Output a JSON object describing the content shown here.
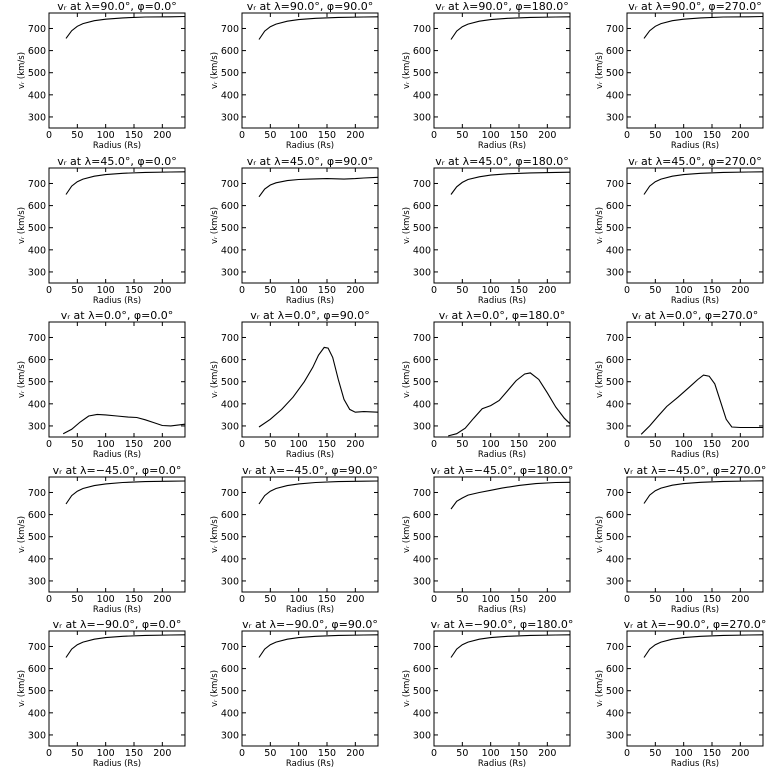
{
  "figure": {
    "panels_per_row": 4,
    "xlabel": "Radius (Rs)",
    "ylabel": "vᵣ (km/s)"
  },
  "chart_data": [
    {
      "type": "line",
      "title": "vᵣ at λ=90.0°, φ=0.0°",
      "xlabel": "Radius (Rs)",
      "ylabel": "vᵣ (km/s)",
      "xlim": [
        0,
        240
      ],
      "ylim": [
        250,
        770
      ],
      "xticks": [
        0,
        50,
        100,
        150,
        200
      ],
      "yticks": [
        300,
        400,
        500,
        600,
        700
      ],
      "series": [
        {
          "x": [
            30,
            40,
            50,
            60,
            80,
            100,
            130,
            170,
            215,
            240
          ],
          "y": [
            655,
            690,
            710,
            722,
            735,
            742,
            748,
            752,
            753,
            754
          ]
        }
      ]
    },
    {
      "type": "line",
      "title": "vᵣ at λ=90.0°, φ=90.0°",
      "xlabel": "Radius (Rs)",
      "ylabel": "vᵣ (km/s)",
      "xlim": [
        0,
        240
      ],
      "ylim": [
        250,
        770
      ],
      "xticks": [
        0,
        50,
        100,
        150,
        200
      ],
      "yticks": [
        300,
        400,
        500,
        600,
        700
      ],
      "series": [
        {
          "x": [
            30,
            40,
            50,
            60,
            80,
            100,
            130,
            170,
            215,
            240
          ],
          "y": [
            650,
            688,
            708,
            720,
            733,
            740,
            746,
            750,
            752,
            753
          ]
        }
      ]
    },
    {
      "type": "line",
      "title": "vᵣ at λ=90.0°, φ=180.0°",
      "xlabel": "Radius (Rs)",
      "ylabel": "vᵣ (km/s)",
      "xlim": [
        0,
        240
      ],
      "ylim": [
        250,
        770
      ],
      "xticks": [
        0,
        50,
        100,
        150,
        200
      ],
      "yticks": [
        300,
        400,
        500,
        600,
        700
      ],
      "series": [
        {
          "x": [
            30,
            40,
            50,
            60,
            80,
            100,
            130,
            170,
            215,
            240
          ],
          "y": [
            650,
            688,
            708,
            720,
            733,
            740,
            746,
            750,
            752,
            753
          ]
        }
      ]
    },
    {
      "type": "line",
      "title": "vᵣ at λ=90.0°, φ=270.0°",
      "xlabel": "Radius (Rs)",
      "ylabel": "vᵣ (km/s)",
      "xlim": [
        0,
        240
      ],
      "ylim": [
        250,
        770
      ],
      "xticks": [
        0,
        50,
        100,
        150,
        200
      ],
      "yticks": [
        300,
        400,
        500,
        600,
        700
      ],
      "series": [
        {
          "x": [
            30,
            40,
            50,
            60,
            80,
            100,
            130,
            170,
            215,
            240
          ],
          "y": [
            655,
            690,
            710,
            722,
            735,
            742,
            748,
            752,
            753,
            754
          ]
        }
      ]
    },
    {
      "type": "line",
      "title": "vᵣ at λ=45.0°, φ=0.0°",
      "xlabel": "Radius (Rs)",
      "ylabel": "vᵣ (km/s)",
      "xlim": [
        0,
        240
      ],
      "ylim": [
        250,
        770
      ],
      "xticks": [
        0,
        50,
        100,
        150,
        200
      ],
      "yticks": [
        300,
        400,
        500,
        600,
        700
      ],
      "series": [
        {
          "x": [
            30,
            40,
            50,
            60,
            80,
            100,
            130,
            170,
            215,
            240
          ],
          "y": [
            650,
            688,
            708,
            720,
            733,
            740,
            746,
            750,
            752,
            753
          ]
        }
      ]
    },
    {
      "type": "line",
      "title": "vᵣ at λ=45.0°, φ=90.0°",
      "xlabel": "Radius (Rs)",
      "ylabel": "vᵣ (km/s)",
      "xlim": [
        0,
        240
      ],
      "ylim": [
        250,
        770
      ],
      "xticks": [
        0,
        50,
        100,
        150,
        200
      ],
      "yticks": [
        300,
        400,
        500,
        600,
        700
      ],
      "series": [
        {
          "x": [
            30,
            40,
            50,
            60,
            80,
            100,
            120,
            150,
            180,
            200,
            215,
            240
          ],
          "y": [
            640,
            675,
            693,
            703,
            713,
            718,
            720,
            722,
            720,
            722,
            725,
            728
          ]
        }
      ]
    },
    {
      "type": "line",
      "title": "vᵣ at λ=45.0°, φ=180.0°",
      "xlabel": "Radius (Rs)",
      "ylabel": "vᵣ (km/s)",
      "xlim": [
        0,
        240
      ],
      "ylim": [
        250,
        770
      ],
      "xticks": [
        0,
        50,
        100,
        150,
        200
      ],
      "yticks": [
        300,
        400,
        500,
        600,
        700
      ],
      "series": [
        {
          "x": [
            30,
            40,
            50,
            60,
            80,
            100,
            130,
            170,
            215,
            240
          ],
          "y": [
            650,
            685,
            705,
            718,
            730,
            738,
            744,
            748,
            750,
            751
          ]
        }
      ]
    },
    {
      "type": "line",
      "title": "vᵣ at λ=45.0°, φ=270.0°",
      "xlabel": "Radius (Rs)",
      "ylabel": "vᵣ (km/s)",
      "xlim": [
        0,
        240
      ],
      "ylim": [
        250,
        770
      ],
      "xticks": [
        0,
        50,
        100,
        150,
        200
      ],
      "yticks": [
        300,
        400,
        500,
        600,
        700
      ],
      "series": [
        {
          "x": [
            30,
            40,
            50,
            60,
            80,
            100,
            130,
            170,
            215,
            240
          ],
          "y": [
            650,
            688,
            708,
            720,
            733,
            740,
            746,
            750,
            752,
            753
          ]
        }
      ]
    },
    {
      "type": "line",
      "title": "vᵣ at λ=0.0°, φ=0.0°",
      "xlabel": "Radius (Rs)",
      "ylabel": "vᵣ (km/s)",
      "xlim": [
        0,
        240
      ],
      "ylim": [
        250,
        770
      ],
      "xticks": [
        0,
        50,
        100,
        150,
        200
      ],
      "yticks": [
        300,
        400,
        500,
        600,
        700
      ],
      "series": [
        {
          "x": [
            25,
            40,
            55,
            70,
            85,
            100,
            120,
            140,
            155,
            170,
            185,
            200,
            215,
            240
          ],
          "y": [
            265,
            285,
            318,
            345,
            352,
            350,
            345,
            340,
            338,
            328,
            315,
            302,
            300,
            308
          ]
        }
      ]
    },
    {
      "type": "line",
      "title": "vᵣ at λ=0.0°, φ=90.0°",
      "xlabel": "Radius (Rs)",
      "ylabel": "vᵣ (km/s)",
      "xlim": [
        0,
        240
      ],
      "ylim": [
        250,
        770
      ],
      "xticks": [
        0,
        50,
        100,
        150,
        200
      ],
      "yticks": [
        300,
        400,
        500,
        600,
        700
      ],
      "series": [
        {
          "x": [
            30,
            50,
            70,
            90,
            110,
            125,
            135,
            145,
            152,
            160,
            170,
            180,
            190,
            200,
            215,
            240
          ],
          "y": [
            295,
            330,
            375,
            430,
            500,
            565,
            620,
            655,
            652,
            610,
            510,
            420,
            375,
            362,
            365,
            362
          ]
        }
      ]
    },
    {
      "type": "line",
      "title": "vᵣ at λ=0.0°, φ=180.0°",
      "xlabel": "Radius (Rs)",
      "ylabel": "vᵣ (km/s)",
      "xlim": [
        0,
        240
      ],
      "ylim": [
        250,
        770
      ],
      "xticks": [
        0,
        50,
        100,
        150,
        200
      ],
      "yticks": [
        300,
        400,
        500,
        600,
        700
      ],
      "series": [
        {
          "x": [
            25,
            40,
            55,
            70,
            85,
            100,
            115,
            130,
            145,
            160,
            170,
            185,
            200,
            215,
            230,
            240
          ],
          "y": [
            255,
            265,
            290,
            335,
            378,
            392,
            415,
            460,
            505,
            535,
            540,
            510,
            450,
            385,
            335,
            310
          ]
        }
      ]
    },
    {
      "type": "line",
      "title": "vᵣ at λ=0.0°, φ=270.0°",
      "xlabel": "Radius (Rs)",
      "ylabel": "vᵣ (km/s)",
      "xlim": [
        0,
        240
      ],
      "ylim": [
        250,
        770
      ],
      "xticks": [
        0,
        50,
        100,
        150,
        200
      ],
      "yticks": [
        300,
        400,
        500,
        600,
        700
      ],
      "series": [
        {
          "x": [
            25,
            40,
            55,
            70,
            90,
            110,
            125,
            135,
            145,
            155,
            165,
            175,
            185,
            200,
            220,
            240
          ],
          "y": [
            262,
            300,
            345,
            388,
            430,
            475,
            510,
            530,
            525,
            490,
            410,
            330,
            295,
            293,
            293,
            293
          ]
        }
      ]
    },
    {
      "type": "line",
      "title": "vᵣ at λ=−45.0°, φ=0.0°",
      "xlabel": "Radius (Rs)",
      "ylabel": "vᵣ (km/s)",
      "xlim": [
        0,
        240
      ],
      "ylim": [
        250,
        770
      ],
      "xticks": [
        0,
        50,
        100,
        150,
        200
      ],
      "yticks": [
        300,
        400,
        500,
        600,
        700
      ],
      "series": [
        {
          "x": [
            30,
            40,
            50,
            60,
            80,
            100,
            130,
            170,
            215,
            240
          ],
          "y": [
            648,
            686,
            706,
            718,
            731,
            739,
            745,
            749,
            751,
            752
          ]
        }
      ]
    },
    {
      "type": "line",
      "title": "vᵣ at λ=−45.0°, φ=90.0°",
      "xlabel": "Radius (Rs)",
      "ylabel": "vᵣ (km/s)",
      "xlim": [
        0,
        240
      ],
      "ylim": [
        250,
        770
      ],
      "xticks": [
        0,
        50,
        100,
        150,
        200
      ],
      "yticks": [
        300,
        400,
        500,
        600,
        700
      ],
      "series": [
        {
          "x": [
            30,
            40,
            50,
            60,
            80,
            100,
            130,
            170,
            215,
            240
          ],
          "y": [
            648,
            686,
            706,
            718,
            731,
            739,
            745,
            749,
            751,
            752
          ]
        }
      ]
    },
    {
      "type": "line",
      "title": "vᵣ at λ=−45.0°, φ=180.0°",
      "xlabel": "Radius (Rs)",
      "ylabel": "vᵣ (km/s)",
      "xlim": [
        0,
        240
      ],
      "ylim": [
        250,
        770
      ],
      "xticks": [
        0,
        50,
        100,
        150,
        200
      ],
      "yticks": [
        300,
        400,
        500,
        600,
        700
      ],
      "series": [
        {
          "x": [
            30,
            40,
            50,
            60,
            80,
            100,
            120,
            150,
            180,
            215,
            240
          ],
          "y": [
            625,
            660,
            675,
            688,
            700,
            710,
            720,
            732,
            740,
            745,
            746
          ]
        }
      ]
    },
    {
      "type": "line",
      "title": "vᵣ at λ=−45.0°, φ=270.0°",
      "xlabel": "Radius (Rs)",
      "ylabel": "vᵣ (km/s)",
      "xlim": [
        0,
        240
      ],
      "ylim": [
        250,
        770
      ],
      "xticks": [
        0,
        50,
        100,
        150,
        200
      ],
      "yticks": [
        300,
        400,
        500,
        600,
        700
      ],
      "series": [
        {
          "x": [
            30,
            40,
            50,
            60,
            80,
            100,
            130,
            170,
            215,
            240
          ],
          "y": [
            650,
            688,
            708,
            720,
            733,
            740,
            746,
            750,
            752,
            753
          ]
        }
      ]
    },
    {
      "type": "line",
      "title": "vᵣ at λ=−90.0°, φ=0.0°",
      "xlabel": "Radius (Rs)",
      "ylabel": "vᵣ (km/s)",
      "xlim": [
        0,
        240
      ],
      "ylim": [
        250,
        770
      ],
      "xticks": [
        0,
        50,
        100,
        150,
        200
      ],
      "yticks": [
        300,
        400,
        500,
        600,
        700
      ],
      "series": [
        {
          "x": [
            30,
            40,
            50,
            60,
            80,
            100,
            130,
            170,
            215,
            240
          ],
          "y": [
            650,
            688,
            708,
            720,
            733,
            740,
            746,
            750,
            752,
            753
          ]
        }
      ]
    },
    {
      "type": "line",
      "title": "vᵣ at λ=−90.0°, φ=90.0°",
      "xlabel": "Radius (Rs)",
      "ylabel": "vᵣ (km/s)",
      "xlim": [
        0,
        240
      ],
      "ylim": [
        250,
        770
      ],
      "xticks": [
        0,
        50,
        100,
        150,
        200
      ],
      "yticks": [
        300,
        400,
        500,
        600,
        700
      ],
      "series": [
        {
          "x": [
            30,
            40,
            50,
            60,
            80,
            100,
            130,
            170,
            215,
            240
          ],
          "y": [
            650,
            688,
            708,
            720,
            733,
            740,
            746,
            750,
            752,
            753
          ]
        }
      ]
    },
    {
      "type": "line",
      "title": "vᵣ at λ=−90.0°, φ=180.0°",
      "xlabel": "Radius (Rs)",
      "ylabel": "vᵣ (km/s)",
      "xlim": [
        0,
        240
      ],
      "ylim": [
        250,
        770
      ],
      "xticks": [
        0,
        50,
        100,
        150,
        200
      ],
      "yticks": [
        300,
        400,
        500,
        600,
        700
      ],
      "series": [
        {
          "x": [
            30,
            40,
            50,
            60,
            80,
            100,
            130,
            170,
            215,
            240
          ],
          "y": [
            650,
            688,
            708,
            720,
            733,
            740,
            746,
            750,
            752,
            753
          ]
        }
      ]
    },
    {
      "type": "line",
      "title": "vᵣ at λ=−90.0°, φ=270.0°",
      "xlabel": "Radius (Rs)",
      "ylabel": "vᵣ (km/s)",
      "xlim": [
        0,
        240
      ],
      "ylim": [
        250,
        770
      ],
      "xticks": [
        0,
        50,
        100,
        150,
        200
      ],
      "yticks": [
        300,
        400,
        500,
        600,
        700
      ],
      "series": [
        {
          "x": [
            30,
            40,
            50,
            60,
            80,
            100,
            130,
            170,
            215,
            240
          ],
          "y": [
            650,
            688,
            708,
            720,
            733,
            740,
            746,
            750,
            752,
            753
          ]
        }
      ]
    }
  ]
}
